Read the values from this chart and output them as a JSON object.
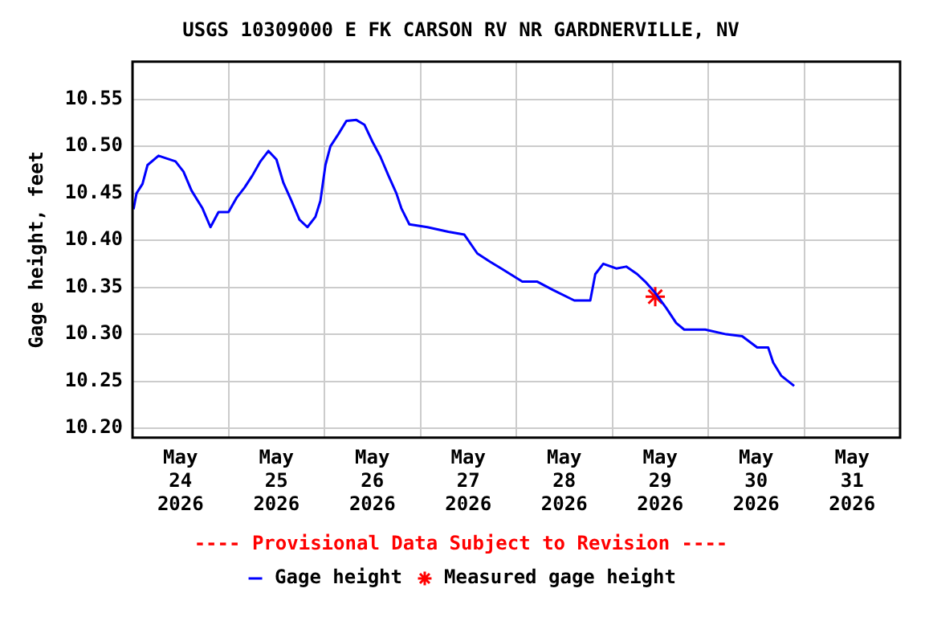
{
  "chart_data": {
    "type": "line",
    "title": "USGS 10309000 E FK CARSON RV NR GARDNERVILLE, NV",
    "ylabel": "Gage height, feet",
    "annotations": [
      "---- Provisional Data Subject to Revision ----"
    ],
    "xlim": [
      "2026-05-24",
      "2026-06-01"
    ],
    "xticks": [
      {
        "value": "2026-05-24",
        "label": null
      },
      {
        "value": "2026-05-24T12:00",
        "label": "May 24 2026"
      },
      {
        "value": "2026-05-25",
        "label": null
      },
      {
        "value": "2026-05-25T12:00",
        "label": "May 25 2026"
      },
      {
        "value": "2026-05-26",
        "label": null
      },
      {
        "value": "2026-05-26T12:00",
        "label": "May 26 2026"
      },
      {
        "value": "2026-05-27",
        "label": null
      },
      {
        "value": "2026-05-27T12:00",
        "label": "May 27 2026"
      },
      {
        "value": "2026-05-28",
        "label": null
      },
      {
        "value": "2026-05-28T12:00",
        "label": "May 28 2026"
      },
      {
        "value": "2026-05-29",
        "label": null
      },
      {
        "value": "2026-05-29T12:00",
        "label": "May 29 2026"
      },
      {
        "value": "2026-05-30",
        "label": null
      },
      {
        "value": "2026-05-30T12:00",
        "label": "May 30 2026"
      },
      {
        "value": "2026-05-31",
        "label": null
      },
      {
        "value": "2026-05-31T12:00",
        "label": "May 31 2026"
      },
      {
        "value": "2026-06-01",
        "label": null
      }
    ],
    "ylim": [
      10.19,
      10.59
    ],
    "yticks": [
      {
        "value": 10.2,
        "label": "10.20"
      },
      {
        "value": 10.25,
        "label": "10.25"
      },
      {
        "value": 10.3,
        "label": "10.30"
      },
      {
        "value": 10.35,
        "label": "10.35"
      },
      {
        "value": 10.4,
        "label": "10.40"
      },
      {
        "value": 10.45,
        "label": "10.45"
      },
      {
        "value": 10.5,
        "label": "10.50"
      },
      {
        "value": 10.55,
        "label": "10.55"
      }
    ],
    "grid": true,
    "legend": "bottom",
    "series": [
      {
        "name": "Gage height",
        "color": "#0000ff",
        "marker": "none",
        "line_style": "solid",
        "x": [
          "2026-05-24T00:15",
          "2026-05-24T01:00",
          "2026-05-24T02:30",
          "2026-05-24T03:45",
          "2026-05-24T06:30",
          "2026-05-24T10:45",
          "2026-05-24T12:45",
          "2026-05-24T14:45",
          "2026-05-24T17:30",
          "2026-05-24T19:30",
          "2026-05-24T21:30",
          "2026-05-25T00:00",
          "2026-05-25T02:00",
          "2026-05-25T04:00",
          "2026-05-25T06:00",
          "2026-05-25T08:00",
          "2026-05-25T10:00",
          "2026-05-25T12:00",
          "2026-05-25T13:45",
          "2026-05-25T15:45",
          "2026-05-25T17:45",
          "2026-05-25T19:45",
          "2026-05-25T21:45",
          "2026-05-25T23:00",
          "2026-05-26T00:15",
          "2026-05-26T01:30",
          "2026-05-26T03:30",
          "2026-05-26T05:30",
          "2026-05-26T08:00",
          "2026-05-26T10:00",
          "2026-05-26T12:00",
          "2026-05-26T14:00",
          "2026-05-26T16:00",
          "2026-05-26T18:00",
          "2026-05-26T19:15",
          "2026-05-26T21:15",
          "2026-05-27T01:45",
          "2026-05-27T07:00",
          "2026-05-27T11:00",
          "2026-05-27T14:15",
          "2026-05-27T17:30",
          "2026-05-27T20:15",
          "2026-05-28T01:30",
          "2026-05-28T05:15",
          "2026-05-28T09:15",
          "2026-05-28T14:30",
          "2026-05-28T18:30",
          "2026-05-28T19:45",
          "2026-05-28T21:45",
          "2026-05-29T01:00",
          "2026-05-29T03:30",
          "2026-05-29T06:15",
          "2026-05-29T08:15",
          "2026-05-29T10:45",
          "2026-05-29T13:30",
          "2026-05-29T16:00",
          "2026-05-29T18:00",
          "2026-05-29T23:15",
          "2026-05-30T04:30",
          "2026-05-30T08:30",
          "2026-05-30T12:15",
          "2026-05-30T15:00",
          "2026-05-30T16:15",
          "2026-05-30T18:15",
          "2026-05-30T21:30"
        ],
        "values": [
          10.433,
          10.45,
          10.46,
          10.48,
          10.49,
          10.484,
          10.473,
          10.453,
          10.434,
          10.414,
          10.43,
          10.43,
          10.445,
          10.456,
          10.469,
          10.484,
          10.495,
          10.486,
          10.461,
          10.442,
          10.422,
          10.414,
          10.425,
          10.442,
          10.48,
          10.5,
          10.513,
          10.527,
          10.528,
          10.523,
          10.505,
          10.489,
          10.469,
          10.45,
          10.434,
          10.417,
          10.414,
          10.409,
          10.406,
          10.386,
          10.377,
          10.37,
          10.356,
          10.356,
          10.347,
          10.336,
          10.336,
          10.364,
          10.375,
          10.37,
          10.372,
          10.364,
          10.356,
          10.344,
          10.328,
          10.312,
          10.305,
          10.305,
          10.3,
          10.298,
          10.286,
          10.286,
          10.27,
          10.256,
          10.245
        ]
      },
      {
        "name": "Measured gage height",
        "type": "scatter",
        "color": "#ff0000",
        "marker": "cross",
        "x": [
          "2026-05-29T10:45"
        ],
        "values": [
          10.34
        ]
      }
    ]
  }
}
